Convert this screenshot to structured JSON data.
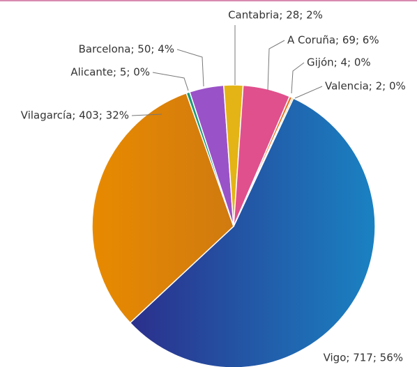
{
  "chart_data": {
    "type": "pie",
    "values": [
      717,
      403,
      5,
      50,
      28,
      69,
      4,
      2
    ],
    "value_labels": [
      "Vigo; 717; 56%",
      "Vilagarcía; 403; 32%",
      "Alicante; 5; 0%",
      "Barcelona; 50; 4%",
      "Cantabria; 28; 2%",
      "A Coruña; 69; 6%",
      "Gijón; 4; 0%",
      "Valencia; 2; 0%"
    ],
    "colors": [
      "#2a46a8",
      "#e88a0a",
      "#1a9a78",
      "#9a52c8",
      "#e4b416",
      "#e0508c",
      "#e0782a",
      "#d8a828"
    ]
  }
}
